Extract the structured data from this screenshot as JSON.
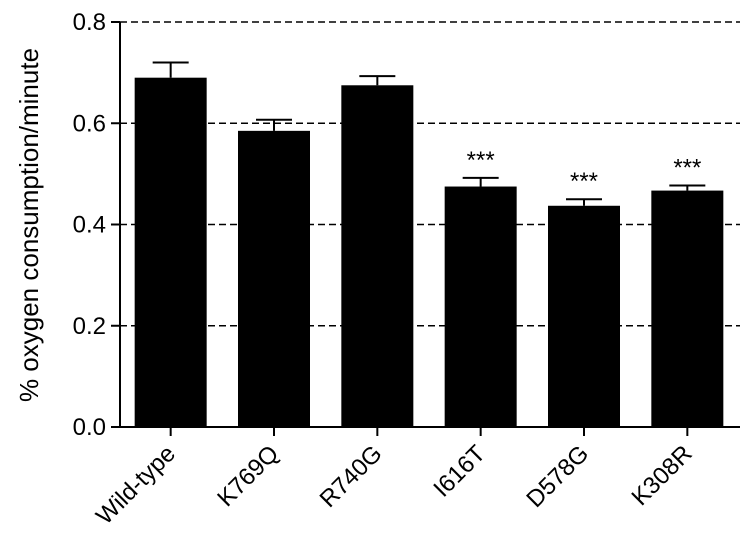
{
  "chart_data": {
    "type": "bar",
    "ylabel": "% oxygen consumption/minute",
    "ylim": [
      0,
      0.8
    ],
    "yticks": [
      "0.0",
      "0.2",
      "0.4",
      "0.6",
      "0.8"
    ],
    "yticks_values": [
      0,
      0.2,
      0.4,
      0.6,
      0.8
    ],
    "grid": true,
    "categories": [
      "Wild-type",
      "K769Q",
      "R740G",
      "I616T",
      "D578G",
      "K308R"
    ],
    "values": [
      0.69,
      0.585,
      0.675,
      0.475,
      0.437,
      0.467
    ],
    "errors": [
      0.03,
      0.022,
      0.018,
      0.017,
      0.013,
      0.01
    ],
    "annotations": [
      "",
      "",
      "",
      "***",
      "***",
      "***"
    ],
    "bar_color": "#000000"
  }
}
